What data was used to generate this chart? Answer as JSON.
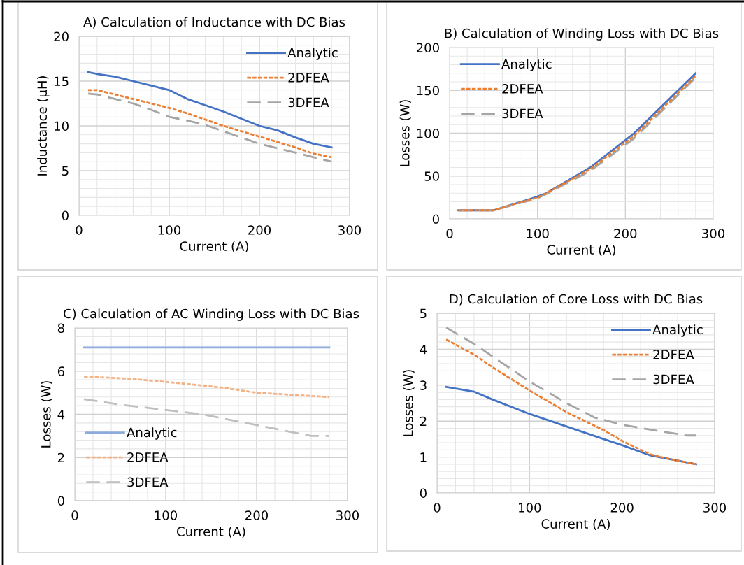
{
  "chart_data": [
    {
      "type": "line",
      "title": "A) Calculation of Inductance with DC Bias",
      "xlabel": "Current (A)",
      "ylabel": "Inductance (µH)",
      "x": [
        10,
        20,
        40,
        60,
        80,
        100,
        120,
        140,
        160,
        180,
        200,
        220,
        240,
        260,
        280
      ],
      "series": [
        {
          "name": "Analytic",
          "color": "#4472c4",
          "line_style": "solid",
          "values": [
            16,
            15.8,
            15.5,
            15,
            14.5,
            14,
            13,
            12.3,
            11.6,
            10.8,
            10,
            9.5,
            8.7,
            8,
            7.6
          ]
        },
        {
          "name": "2DFEA",
          "color": "#ed7d31",
          "line_style": "dotted",
          "values": [
            14,
            14,
            13.5,
            13,
            12.5,
            12,
            11.4,
            10.7,
            10,
            9.4,
            8.8,
            8.2,
            7.6,
            6.9,
            6.5
          ]
        },
        {
          "name": "3DFEA",
          "color": "#a5a5a5",
          "line_style": "dashed",
          "values": [
            13.6,
            13.5,
            13,
            12.5,
            11.8,
            11,
            10.6,
            10.1,
            9.4,
            8.7,
            8,
            7.5,
            7,
            6.5,
            6
          ]
        }
      ],
      "xlim": [
        0,
        300
      ],
      "xticks": [
        0,
        100,
        200,
        300
      ],
      "ylim": [
        0,
        20
      ],
      "yticks": [
        0,
        5,
        10,
        15,
        20
      ],
      "grid": true,
      "legend": "top right"
    },
    {
      "type": "line",
      "title": "B) Calculation of Winding Loss with DC Bias",
      "xlabel": "Current (A)",
      "ylabel": "Losses (W)",
      "x": [
        10,
        50,
        100,
        110,
        160,
        210,
        280
      ],
      "series": [
        {
          "name": "Analytic",
          "color": "#4472c4",
          "line_style": "solid",
          "values": [
            10,
            10,
            26,
            30,
            60,
            100,
            170
          ]
        },
        {
          "name": "2DFEA",
          "color": "#ed7d31",
          "line_style": "dotted",
          "values": [
            10,
            10,
            25,
            30,
            58,
            97,
            167
          ]
        },
        {
          "name": "3DFEA",
          "color": "#a5a5a5",
          "line_style": "dashed",
          "values": [
            10,
            10,
            24,
            29,
            56,
            94,
            165
          ]
        }
      ],
      "xlim": [
        0,
        300
      ],
      "xticks": [
        0,
        100,
        200,
        300
      ],
      "ylim": [
        0,
        200
      ],
      "yticks": [
        0,
        50,
        100,
        150,
        200
      ],
      "grid": true,
      "legend": "top left"
    },
    {
      "type": "line",
      "title": "C) Calculation of AC Winding Loss with DC Bias",
      "xlabel": "Current (A)",
      "ylabel": "Losses (W)",
      "series": [
        {
          "name": "Analytic",
          "color": "#8faadc",
          "line_style": "solid",
          "x": [
            10,
            280
          ],
          "values": [
            7.1,
            7.1
          ]
        },
        {
          "name": "2DFEA",
          "color": "#f4b183",
          "line_style": "dotted",
          "x": [
            10,
            60,
            100,
            160,
            200,
            280
          ],
          "values": [
            5.75,
            5.65,
            5.5,
            5.25,
            5.0,
            4.8
          ]
        },
        {
          "name": "3DFEA",
          "color": "#bfbfbf",
          "line_style": "dashed",
          "x": [
            10,
            50,
            100,
            140,
            200,
            260,
            280
          ],
          "values": [
            4.7,
            4.45,
            4.2,
            4.0,
            3.5,
            3.0,
            3.0
          ]
        }
      ],
      "xlim": [
        0,
        300
      ],
      "xticks": [
        0,
        100,
        200,
        300
      ],
      "ylim": [
        0,
        8
      ],
      "yticks": [
        0,
        2,
        4,
        6,
        8
      ],
      "grid": true,
      "legend": "bottom left"
    },
    {
      "type": "line",
      "title": "D) Calculation of Core Loss with DC Bias",
      "xlabel": "Current (A)",
      "ylabel": "Losses (W)",
      "series": [
        {
          "name": "Analytic",
          "color": "#4472c4",
          "line_style": "solid",
          "x": [
            10,
            40,
            60,
            100,
            140,
            180,
            200,
            230,
            250,
            280
          ],
          "values": [
            2.95,
            2.82,
            2.6,
            2.2,
            1.85,
            1.5,
            1.33,
            1.05,
            0.95,
            0.8
          ]
        },
        {
          "name": "2DFEA",
          "color": "#ed7d31",
          "line_style": "dotted",
          "x": [
            10,
            40,
            60,
            100,
            140,
            180,
            200,
            230,
            250,
            280
          ],
          "values": [
            4.27,
            3.85,
            3.5,
            2.85,
            2.25,
            1.75,
            1.45,
            1.08,
            0.95,
            0.8
          ]
        },
        {
          "name": "3DFEA",
          "color": "#a5a5a5",
          "line_style": "dashed",
          "x": [
            10,
            40,
            60,
            100,
            140,
            170,
            200,
            240,
            270,
            280
          ],
          "values": [
            4.6,
            4.15,
            3.8,
            3.1,
            2.5,
            2.1,
            1.9,
            1.72,
            1.6,
            1.6
          ]
        }
      ],
      "xlim": [
        0,
        300
      ],
      "xticks": [
        0,
        100,
        200,
        300
      ],
      "ylim": [
        0,
        5
      ],
      "yticks": [
        0,
        1,
        2,
        3,
        4,
        5
      ],
      "grid": true,
      "legend": "top right"
    }
  ]
}
